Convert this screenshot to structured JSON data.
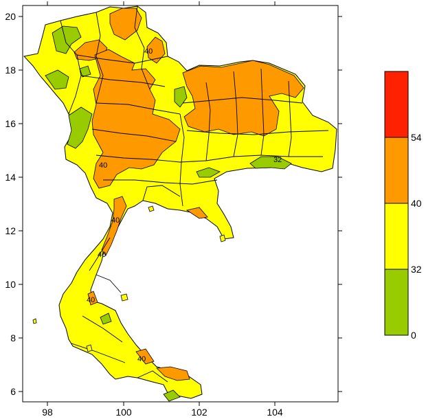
{
  "map": {
    "x_ticks": [
      "98",
      "100",
      "102",
      "104"
    ],
    "y_ticks": [
      "6",
      "8",
      "10",
      "12",
      "14",
      "16",
      "18",
      "20"
    ],
    "contour_labels": [
      "40",
      "40",
      "40",
      "40",
      "40",
      "40",
      "32"
    ]
  },
  "legend": {
    "bins": [
      {
        "from": 54,
        "to": null,
        "color": "#ff2200"
      },
      {
        "from": 40,
        "to": 54,
        "color": "#ff9900"
      },
      {
        "from": 32,
        "to": 40,
        "color": "#ffff00"
      },
      {
        "from": 0,
        "to": 32,
        "color": "#99cc00"
      }
    ],
    "labels": [
      "54",
      "40",
      "32",
      "0"
    ]
  },
  "colors": {
    "green": "#99cc00",
    "yellow": "#ffff00",
    "orange": "#ff9900",
    "red": "#ff2200"
  }
}
